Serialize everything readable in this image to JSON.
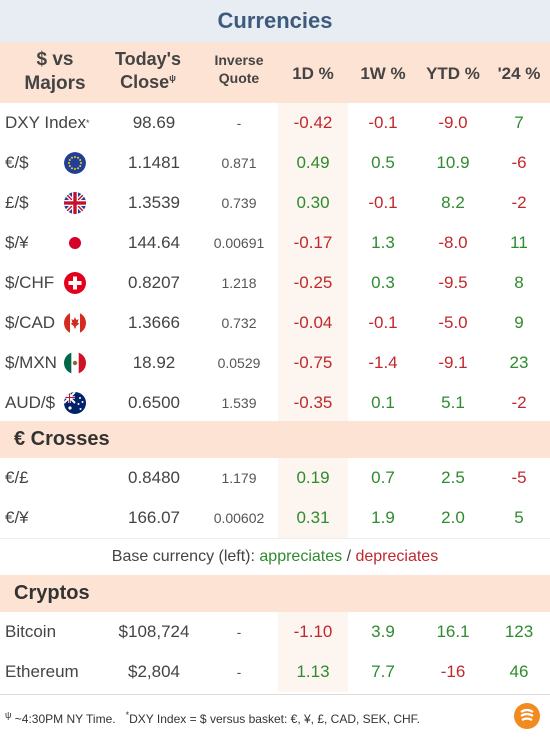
{
  "title": "Currencies",
  "header": {
    "majors_line1": "$ vs",
    "majors_line2": "Majors",
    "close_line1": "Today's",
    "close_line2": "Close",
    "close_sup": "ψ",
    "inverse_line1": "Inverse",
    "inverse_line2": "Quote",
    "d1": "1D %",
    "w1": "1W %",
    "ytd": "YTD %",
    "y24": "'24 %"
  },
  "majors": [
    {
      "name": "DXY Index",
      "sup": "*",
      "flag": "",
      "close": "98.69",
      "inverse": "-",
      "d1": "-0.42",
      "w1": "-0.1",
      "ytd": "-9.0",
      "y24": "7"
    },
    {
      "name": "€/$",
      "sup": "",
      "flag": "eu-flag-icon",
      "close": "1.1481",
      "inverse": "0.871",
      "d1": "0.49",
      "w1": "0.5",
      "ytd": "10.9",
      "y24": "-6"
    },
    {
      "name": "£/$",
      "sup": "",
      "flag": "uk-flag-icon",
      "close": "1.3539",
      "inverse": "0.739",
      "d1": "0.30",
      "w1": "-0.1",
      "ytd": "8.2",
      "y24": "-2"
    },
    {
      "name": "$/¥",
      "sup": "",
      "flag": "japan-flag-icon",
      "close": "144.64",
      "inverse": "0.00691",
      "d1": "-0.17",
      "w1": "1.3",
      "ytd": "-8.0",
      "y24": "11"
    },
    {
      "name": "$/CHF",
      "sup": "",
      "flag": "swiss-flag-icon",
      "close": "0.8207",
      "inverse": "1.218",
      "d1": "-0.25",
      "w1": "0.3",
      "ytd": "-9.5",
      "y24": "8"
    },
    {
      "name": "$/CAD",
      "sup": "",
      "flag": "canada-flag-icon",
      "close": "1.3666",
      "inverse": "0.732",
      "d1": "-0.04",
      "w1": "-0.1",
      "ytd": "-5.0",
      "y24": "9"
    },
    {
      "name": "$/MXN",
      "sup": "",
      "flag": "mexico-flag-icon",
      "close": "18.92",
      "inverse": "0.0529",
      "d1": "-0.75",
      "w1": "-1.4",
      "ytd": "-9.1",
      "y24": "23"
    },
    {
      "name": "AUD/$",
      "sup": "",
      "flag": "australia-flag-icon",
      "close": "0.6500",
      "inverse": "1.539",
      "d1": "-0.35",
      "w1": "0.1",
      "ytd": "5.1",
      "y24": "-2"
    }
  ],
  "crosses_title": "€ Crosses",
  "crosses": [
    {
      "name": "€/£",
      "close": "0.8480",
      "inverse": "1.179",
      "d1": "0.19",
      "w1": "0.7",
      "ytd": "2.5",
      "y24": "-5"
    },
    {
      "name": "€/¥",
      "close": "166.07",
      "inverse": "0.00602",
      "d1": "0.31",
      "w1": "1.9",
      "ytd": "2.0",
      "y24": "5"
    }
  ],
  "legend": {
    "prefix": "Base currency (left): ",
    "appreciates": "appreciates",
    "slash": " / ",
    "depreciates": "depreciates"
  },
  "cryptos_title": "Cryptos",
  "cryptos": [
    {
      "name": "Bitcoin",
      "close": "$108,724",
      "inverse": "-",
      "d1": "-1.10",
      "w1": "3.9",
      "ytd": "16.1",
      "y24": "123"
    },
    {
      "name": "Ethereum",
      "close": "$2,804",
      "inverse": "-",
      "d1": "1.13",
      "w1": "7.7",
      "ytd": "-16",
      "y24": "46"
    }
  ],
  "footer": {
    "sup1": "ψ",
    "note1": " ~4:30PM NY Time.",
    "sup2": "*",
    "note2": "DXY Index = $ versus basket: €, ¥, £, CAD, SEK, CHF."
  },
  "colors": {
    "positive": "#2e8b2e",
    "negative": "#c0282d",
    "header_bg": "#fde3d4",
    "title_bg": "#e8edf3",
    "title_text": "#3e5a7c"
  }
}
